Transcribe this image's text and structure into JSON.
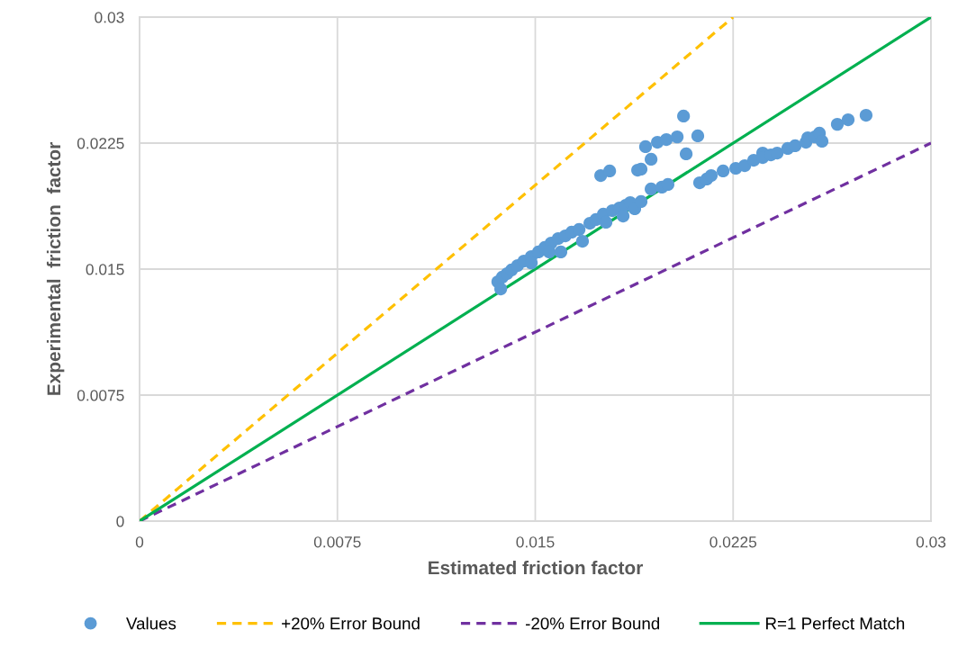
{
  "chart_data": {
    "type": "scatter",
    "xlabel": "Estimated friction factor",
    "ylabel": "Experimental  friction  factor",
    "xlim": [
      0,
      0.03
    ],
    "ylim": [
      0,
      0.03
    ],
    "xticks": [
      0,
      0.0075,
      0.015,
      0.0225,
      0.03
    ],
    "yticks": [
      0,
      0.0075,
      0.015,
      0.0225,
      0.03
    ],
    "grid": true,
    "legend": "bottom",
    "series": [
      {
        "name": "Values",
        "color": "#5b9bd5",
        "marker": "circle",
        "x": [
          0.01358,
          0.01369,
          0.01375,
          0.01393,
          0.0141,
          0.01433,
          0.01457,
          0.01485,
          0.01512,
          0.01485,
          0.01536,
          0.0156,
          0.01553,
          0.01587,
          0.01614,
          0.01597,
          0.01638,
          0.01666,
          0.01679,
          0.01707,
          0.0173,
          0.01758,
          0.01768,
          0.01792,
          0.01819,
          0.01843,
          0.01833,
          0.0186,
          0.01877,
          0.01901,
          0.01939,
          0.0198,
          0.02003,
          0.01748,
          0.01782,
          0.01888,
          0.01901,
          0.01939,
          0.01918,
          0.01963,
          0.01997,
          0.02038,
          0.02062,
          0.02116,
          0.02072,
          0.02123,
          0.0215,
          0.02167,
          0.02212,
          0.0226,
          0.02294,
          0.02328,
          0.02362,
          0.02362,
          0.02393,
          0.02417,
          0.02457,
          0.02485,
          0.02526,
          0.02533,
          0.0256,
          0.02577,
          0.02587,
          0.02645,
          0.02686,
          0.02754
        ],
        "values": [
          0.01425,
          0.01382,
          0.01452,
          0.01473,
          0.01495,
          0.01521,
          0.01548,
          0.01575,
          0.01602,
          0.01537,
          0.01629,
          0.01655,
          0.01602,
          0.01682,
          0.01698,
          0.01602,
          0.0172,
          0.01736,
          0.01666,
          0.01773,
          0.01795,
          0.01827,
          0.01779,
          0.01848,
          0.01864,
          0.0188,
          0.01816,
          0.01896,
          0.01859,
          0.01902,
          0.01977,
          0.01988,
          0.02004,
          0.02057,
          0.02084,
          0.02089,
          0.02095,
          0.02154,
          0.02229,
          0.02255,
          0.02271,
          0.02287,
          0.02411,
          0.02293,
          0.02186,
          0.02014,
          0.02036,
          0.02057,
          0.02084,
          0.021,
          0.02116,
          0.02148,
          0.02191,
          0.02164,
          0.0218,
          0.02191,
          0.02218,
          0.02234,
          0.02255,
          0.02282,
          0.02287,
          0.02309,
          0.02261,
          0.02362,
          0.02389,
          0.02416
        ]
      },
      {
        "name": "+20% Error Bound",
        "type": "line",
        "color": "#ffc000",
        "line_style": "dashed",
        "x": [
          0,
          0.0225
        ],
        "values": [
          0,
          0.03
        ]
      },
      {
        "name": "-20% Error Bound",
        "type": "line",
        "color": "#7030a0",
        "line_style": "dashed",
        "x": [
          0,
          0.03
        ],
        "values": [
          0,
          0.0225
        ]
      },
      {
        "name": "R=1 Perfect Match",
        "type": "line",
        "color": "#00b050",
        "line_style": "solid",
        "x": [
          0,
          0.03
        ],
        "values": [
          0,
          0.03
        ]
      }
    ]
  }
}
